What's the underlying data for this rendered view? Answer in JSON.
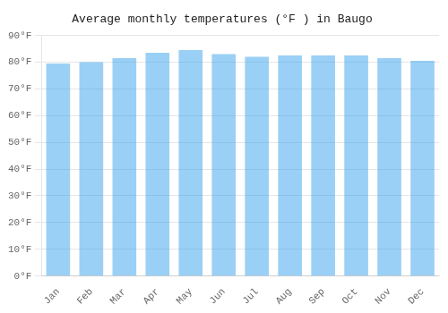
{
  "chart_data": {
    "type": "bar",
    "title": "Average monthly temperatures (°F ) in Baugo",
    "categories": [
      "Jan",
      "Feb",
      "Mar",
      "Apr",
      "May",
      "Jun",
      "Jul",
      "Aug",
      "Sep",
      "Oct",
      "Nov",
      "Dec"
    ],
    "values": [
      79.5,
      80.0,
      81.5,
      83.5,
      84.5,
      83.0,
      82.0,
      82.5,
      82.5,
      82.5,
      81.5,
      80.5
    ],
    "ylim": [
      0,
      90
    ],
    "yticks": [
      {
        "value": 0,
        "label": "0°F"
      },
      {
        "value": 10,
        "label": "10°F"
      },
      {
        "value": 20,
        "label": "20°F"
      },
      {
        "value": 30,
        "label": "30°F"
      },
      {
        "value": 40,
        "label": "40°F"
      },
      {
        "value": 50,
        "label": "50°F"
      },
      {
        "value": 60,
        "label": "60°F"
      },
      {
        "value": 70,
        "label": "70°F"
      },
      {
        "value": 80,
        "label": "80°F"
      },
      {
        "value": 90,
        "label": "90°F"
      }
    ],
    "grid": true
  }
}
